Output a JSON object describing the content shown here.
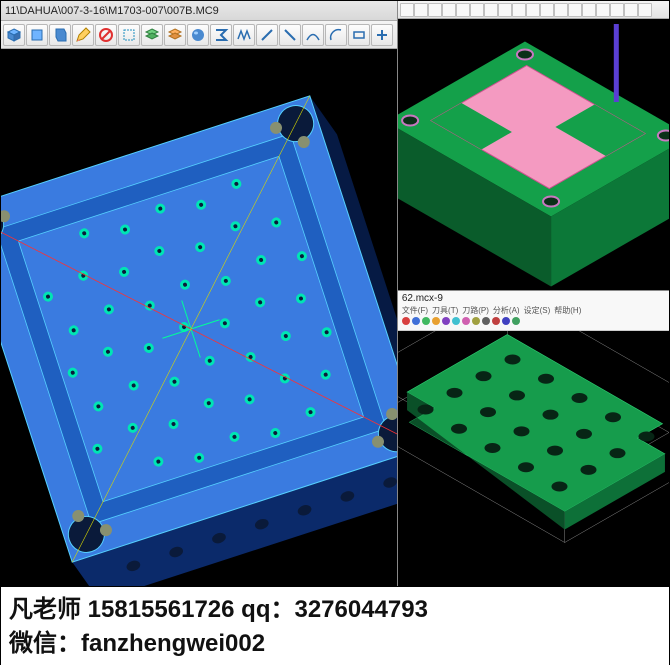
{
  "left_window": {
    "title": "11\\DAHUA\\007-3-16\\M1703-007\\007B.MC9",
    "toolbar_icons": [
      "cube-iso-icon",
      "cube-front-icon",
      "cube-side-icon",
      "pencil-edit-icon",
      "no-entry-icon",
      "select-box-icon",
      "layers-icon",
      "layers2-icon",
      "sphere-icon",
      "sigma-icon",
      "zigzag-icon",
      "line-icon",
      "diag-icon",
      "curve-icon",
      "arc-icon",
      "rect-icon",
      "plus-icon"
    ],
    "viewport": {
      "background": "#000000",
      "model": {
        "type": "3d-mold-plate",
        "top_face_color": "#3a7be0",
        "top_shade_color": "#1f5fc0",
        "side_face_color": "#0b2a6a",
        "side_shade_color": "#061a44",
        "edge_color": "#55d0ff",
        "corner_hole_color": "#0a1a3a",
        "small_hole_color": "#00e5b4",
        "pin_hole_color": "#889070",
        "center_marker_color": "#00ff99",
        "guide_line_colors": [
          "#ff3030",
          "#d8d800"
        ],
        "rotation_deg": -18
      }
    }
  },
  "right_top": {
    "toolbar_icon_count": 18,
    "viewport": {
      "background": "#000000",
      "model": {
        "type": "3d-mold-box",
        "box_top_color": "#14a04a",
        "box_side_color": "#0c7838",
        "box_side2_color": "#0a5c2b",
        "insert_top_color": "#f49ac1",
        "insert_side_color": "#e878a8",
        "insert_edge_color": "#d05090",
        "pin_color": "#5a3fd4",
        "hole_color": "#0a3018",
        "ring_color": "#c878c0"
      }
    }
  },
  "right_bottom": {
    "title": "62.mcx-9",
    "menus": [
      "文件(F)",
      "刀具(T)",
      "刀路(P)",
      "分析(A)",
      "设定(S)",
      "帮助(H)"
    ],
    "icon_palette": [
      "#d84040",
      "#4070d8",
      "#40b860",
      "#e8a030",
      "#8040c0",
      "#40c0d0",
      "#d060b0",
      "#a0a040",
      "#606060",
      "#c04040",
      "#4040c0",
      "#40a060"
    ],
    "viewport": {
      "background": "#000000",
      "model": {
        "type": "3d-plate-holes",
        "top_color": "#169c4c",
        "side_color": "#0d7038",
        "side2_color": "#0a5028",
        "hole_color": "#072515",
        "edge_color": "#2ecc71",
        "guide_line_color": "#888888",
        "hole_grid": {
          "rows": 4,
          "cols": 5
        }
      }
    }
  },
  "footer": {
    "line1": "凡老师 15815561726 qq：3276044793",
    "line2": "微信：fanzhengwei002",
    "text_color": "#111111"
  }
}
